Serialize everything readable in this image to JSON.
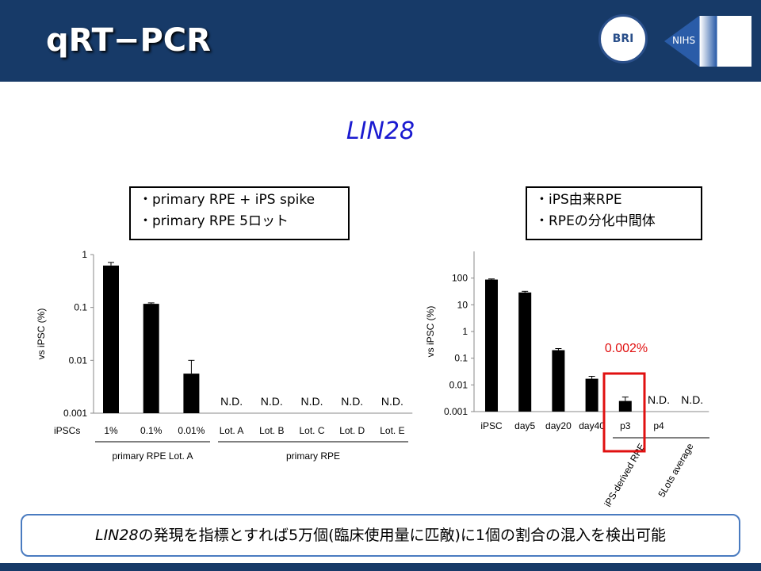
{
  "slide": {
    "title": "qRT−PCR",
    "logo_left": "BRI",
    "logo_right": "NIHS",
    "subtitle": "LIN28",
    "box_left": [
      "・primary RPE + iPS spike",
      "・primary RPE 5ロット"
    ],
    "box_right": [
      "・iPS由来RPE",
      "・RPEの分化中間体"
    ],
    "note_italic": "LIN28",
    "note": "の発現を指標とすれば5万個(臨床使用量に匹敵)に1個の割合の混入を検出可能"
  },
  "chart_data": [
    {
      "type": "bar",
      "log_scale": true,
      "color": "#000000",
      "y_label": "vs iPSC (%)",
      "category_header": "iPSCs",
      "categories": [
        "1%",
        "0.1%",
        "0.01%",
        "Lot. A",
        "Lot. B",
        "Lot. C",
        "Lot. D",
        "Lot. E"
      ],
      "values": [
        0.62,
        0.117,
        0.0056,
        null,
        null,
        null,
        null,
        null
      ],
      "errors": [
        0.09,
        0.005,
        0.0044,
        null,
        null,
        null,
        null,
        null
      ],
      "value_labels": [
        null,
        null,
        null,
        "N.D.",
        "N.D.",
        "N.D.",
        "N.D.",
        "N.D."
      ],
      "group_labels": [
        "primary RPE Lot. A",
        "primary RPE"
      ],
      "ylim": [
        0.001,
        1
      ],
      "yticks": [
        0.001,
        0.01,
        0.1,
        1
      ]
    },
    {
      "type": "bar",
      "log_scale": true,
      "color": "#000000",
      "y_label": "vs iPSC (%)",
      "categories": [
        "iPSC",
        "day5",
        "day20",
        "day40",
        "p3",
        "p4",
        null
      ],
      "values": [
        88,
        29,
        0.2,
        0.017,
        0.0025,
        null,
        null
      ],
      "errors": [
        5,
        3,
        0.03,
        0.004,
        0.001,
        null,
        null
      ],
      "value_labels": [
        null,
        null,
        null,
        null,
        null,
        "N.D.",
        "N.D."
      ],
      "group_labels": [
        "iPS-derived RPE",
        "5Lots average"
      ],
      "annotation": "0.002%",
      "ylim": [
        0.001,
        1000
      ],
      "yticks": [
        0.001,
        0.01,
        0.1,
        1,
        10,
        100
      ]
    }
  ]
}
